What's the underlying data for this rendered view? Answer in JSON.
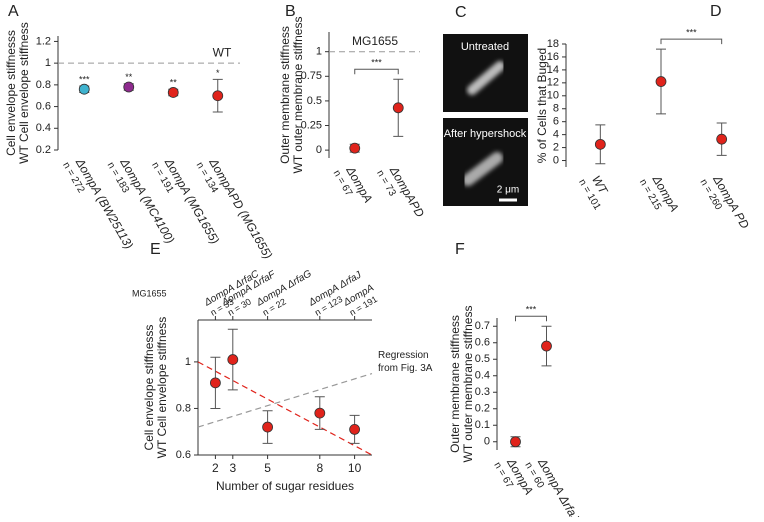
{
  "chart_data": [
    {
      "panel_label": "A",
      "type": "dot",
      "ylabel": [
        "Cell envelope stiffnesss",
        "WT Cell envelope stiffness"
      ],
      "categories": [
        "ΔompA (BW25113)",
        "ΔompA (MC4100)",
        "ΔompA (MG1655)",
        "ΔompAPD (MG1655)"
      ],
      "n_labels": [
        "n = 272",
        "n = 183",
        "n = 191",
        "n = 134"
      ],
      "values": [
        0.76,
        0.78,
        0.73,
        0.7
      ],
      "errors": [
        0.03,
        0.03,
        0.03,
        0.15
      ],
      "colors": [
        "#3fb3cf",
        "#8e2a8e",
        "#e0231b",
        "#e0231b"
      ],
      "significance": [
        "***",
        "**",
        "**",
        "*"
      ],
      "reference_line": {
        "value": 1,
        "label": "WT"
      },
      "ylim": [
        0.2,
        1.25
      ],
      "yticks": [
        0.2,
        0.4,
        0.6,
        0.8,
        1,
        1.2
      ]
    },
    {
      "panel_label": "B",
      "type": "dot",
      "ylabel": [
        "Outer membrane stiffness",
        "WT outer membrane stiffness"
      ],
      "categories": [
        "ΔompA",
        "ΔompAPD"
      ],
      "n_labels": [
        "n = 67",
        "n = 73"
      ],
      "values": [
        0.02,
        0.43
      ],
      "errors": [
        0.04,
        0.29
      ],
      "color": "#e0231b",
      "bracket": "***",
      "reference_line": {
        "value": 1,
        "label": "MG1655"
      },
      "ylim": [
        -0.08,
        1.2
      ],
      "yticks": [
        0,
        0.25,
        0.5,
        0.75,
        1
      ]
    },
    {
      "panel_label": "D",
      "type": "dot",
      "ylabel": [
        "% of Cells that Buged"
      ],
      "categories": [
        "WT",
        "ΔompA",
        "ΔompA PD"
      ],
      "n_labels": [
        "n = 101",
        "n = 215",
        "n = 260"
      ],
      "values": [
        2.5,
        12.2,
        3.3
      ],
      "errors": [
        3,
        5,
        2.5
      ],
      "color": "#e0231b",
      "bracket": "***",
      "ylim": [
        -1,
        18
      ],
      "yticks": [
        0,
        2,
        4,
        6,
        8,
        10,
        12,
        14,
        16,
        18
      ]
    },
    {
      "panel_label": "E",
      "type": "scatter",
      "ylabel": [
        "Cell envelope stiffnesss",
        "WT Cell envelope stiffness"
      ],
      "xlabel": "Number of sugar residues",
      "top_label": "MG1655",
      "strains": [
        "ΔompA ΔrfaC",
        "ΔompA ΔrfaF",
        "ΔompA ΔrfaG",
        "ΔompA ΔrfaJ",
        "ΔompA"
      ],
      "n_labels": [
        "n = 33",
        "n = 30",
        "n = 22",
        "n = 123",
        "n = 191"
      ],
      "x": [
        2,
        3,
        5,
        8,
        10
      ],
      "values": [
        0.91,
        1.01,
        0.72,
        0.78,
        0.71
      ],
      "errors": [
        0.11,
        0.13,
        0.07,
        0.07,
        0.06
      ],
      "color": "#e0231b",
      "lines": [
        {
          "x": [
            1,
            11
          ],
          "y": [
            1,
            0.6
          ],
          "color": "#e0231b"
        },
        {
          "x": [
            1,
            11
          ],
          "y": [
            0.72,
            0.95
          ],
          "color": "#999999",
          "label": [
            "Regression",
            "from Fig. 3A"
          ]
        }
      ],
      "xlim": [
        1,
        11
      ],
      "xticks": [
        2,
        3,
        5,
        8,
        10
      ],
      "ylim": [
        0.6,
        1.18
      ],
      "yticks": [
        0.6,
        0.8,
        1
      ]
    },
    {
      "panel_label": "F",
      "type": "dot",
      "ylabel": [
        "Outer membrane stiffness",
        "WT outer membrane stiffness"
      ],
      "categories": [
        "ΔompA",
        "ΔompA ΔrfaJ"
      ],
      "n_labels": [
        "n = 67",
        "n = 60"
      ],
      "values": [
        0,
        0.58
      ],
      "errors": [
        0.03,
        0.12
      ],
      "color": "#e0231b",
      "bracket": "***",
      "ylim": [
        -0.05,
        0.75
      ],
      "yticks": [
        0,
        0.1,
        0.2,
        0.3,
        0.4,
        0.5,
        0.6,
        0.7
      ]
    }
  ],
  "micrograph": {
    "panel_label": "C",
    "labels": [
      "Untreated",
      "After hypershock"
    ],
    "scale_bar": "2 μm"
  }
}
